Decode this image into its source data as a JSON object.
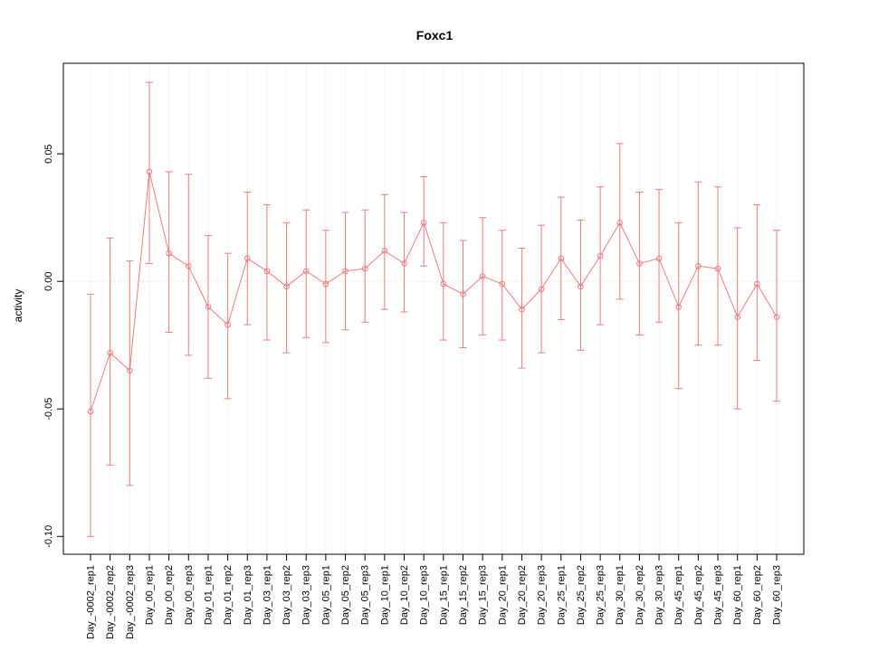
{
  "chart_data": {
    "type": "line",
    "title": "Foxc1",
    "xlabel": "",
    "ylabel": "activity",
    "categories": [
      "Day_-0002_rep1",
      "Day_-0002_rep2",
      "Day_-0002_rep3",
      "Day_00_rep1",
      "Day_00_rep2",
      "Day_00_rep3",
      "Day_01_rep1",
      "Day_01_rep2",
      "Day_01_rep3",
      "Day_03_rep1",
      "Day_03_rep2",
      "Day_03_rep3",
      "Day_05_rep1",
      "Day_05_rep2",
      "Day_05_rep3",
      "Day_10_rep1",
      "Day_10_rep2",
      "Day_10_rep3",
      "Day_15_rep1",
      "Day_15_rep2",
      "Day_15_rep3",
      "Day_20_rep1",
      "Day_20_rep2",
      "Day_20_rep3",
      "Day_25_rep1",
      "Day_25_rep2",
      "Day_25_rep3",
      "Day_30_rep1",
      "Day_30_rep2",
      "Day_30_rep3",
      "Day_45_rep1",
      "Day_45_rep2",
      "Day_45_rep3",
      "Day_60_rep1",
      "Day_60_rep2",
      "Day_60_rep3"
    ],
    "series": [
      {
        "name": "activity",
        "values": [
          -0.051,
          -0.028,
          -0.035,
          0.043,
          0.011,
          0.006,
          -0.01,
          -0.017,
          0.009,
          0.004,
          -0.002,
          0.004,
          -0.001,
          0.004,
          0.005,
          0.012,
          0.007,
          0.023,
          -0.001,
          -0.005,
          0.002,
          -0.001,
          -0.011,
          -0.003,
          0.009,
          -0.002,
          0.01,
          0.023,
          0.007,
          0.009,
          -0.01,
          0.006,
          0.005,
          -0.014,
          -0.001,
          -0.014
        ],
        "error_upper": [
          -0.005,
          0.017,
          0.008,
          0.078,
          0.043,
          0.042,
          0.018,
          0.011,
          0.035,
          0.03,
          0.023,
          0.028,
          0.02,
          0.027,
          0.028,
          0.034,
          0.027,
          0.041,
          0.023,
          0.016,
          0.025,
          0.02,
          0.013,
          0.022,
          0.033,
          0.024,
          0.037,
          0.054,
          0.035,
          0.036,
          0.023,
          0.039,
          0.037,
          0.021,
          0.03,
          0.02
        ],
        "error_lower": [
          -0.1,
          -0.072,
          -0.08,
          0.007,
          -0.02,
          -0.029,
          -0.038,
          -0.046,
          -0.017,
          -0.023,
          -0.028,
          -0.022,
          -0.024,
          -0.019,
          -0.016,
          -0.011,
          -0.012,
          0.006,
          -0.023,
          -0.026,
          -0.021,
          -0.023,
          -0.034,
          -0.028,
          -0.015,
          -0.027,
          -0.017,
          -0.007,
          -0.021,
          -0.016,
          -0.042,
          -0.025,
          -0.025,
          -0.05,
          -0.031,
          -0.047
        ]
      }
    ],
    "yticks": [
      -0.1,
      -0.05,
      0.0,
      0.05
    ],
    "ylim": [
      -0.107,
      0.0855
    ],
    "grid": "vertical-dotted",
    "zero_line": true,
    "legend": "none",
    "colors": {
      "series": "#ee7d7a",
      "grid": "#dcdcdc",
      "zero_line": "#f5c6c6",
      "axis": "#000000",
      "background": "#ffffff"
    }
  }
}
